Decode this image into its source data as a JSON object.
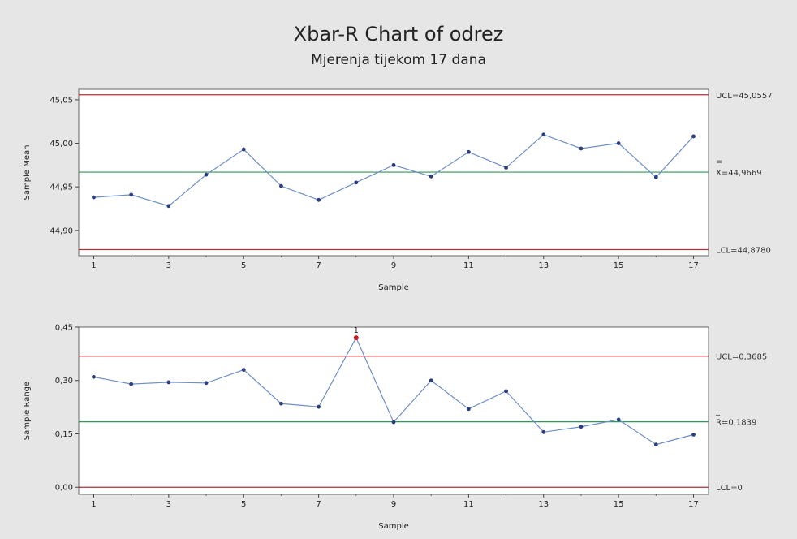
{
  "title": "Xbar-R Chart of odrez",
  "subtitle": "Mjerenja tijekom 17 dana",
  "colors": {
    "limit_line": "#b0303a",
    "center_line": "#2e9a5a",
    "series": "#6f8fc8",
    "point": "#2b3f80",
    "flag_point": "#c0202a",
    "plot_bg": "#ffffff",
    "figure_bg": "#e6e6e6"
  },
  "chart_data": [
    {
      "type": "line",
      "name": "xbar",
      "x": [
        1,
        2,
        3,
        4,
        5,
        6,
        7,
        8,
        9,
        10,
        11,
        12,
        13,
        14,
        15,
        16,
        17
      ],
      "values": [
        44.938,
        44.941,
        44.928,
        44.964,
        44.993,
        44.951,
        44.935,
        44.955,
        44.975,
        44.962,
        44.99,
        44.972,
        45.01,
        44.994,
        45.0,
        44.961,
        45.008
      ],
      "xlabel": "Sample",
      "ylabel": "Sample Mean",
      "ylim": [
        44.871,
        45.062
      ],
      "yticks": [
        44.9,
        44.95,
        45.0,
        45.05
      ],
      "ytick_labels": [
        "44,90",
        "44,95",
        "45,00",
        "45,05"
      ],
      "xticks": [
        1,
        3,
        5,
        7,
        9,
        11,
        13,
        15,
        17
      ],
      "xtick_labels": [
        "1",
        "3",
        "5",
        "7",
        "9",
        "11",
        "13",
        "15",
        "17"
      ],
      "limits": {
        "ucl": {
          "value": 45.0557,
          "label": "UCL=45,0557"
        },
        "center": {
          "value": 44.9669,
          "label": "X=44,9669",
          "overline": "="
        },
        "lcl": {
          "value": 44.878,
          "label": "LCL=44,8780"
        }
      },
      "flagged": []
    },
    {
      "type": "line",
      "name": "range",
      "x": [
        1,
        2,
        3,
        4,
        5,
        6,
        7,
        8,
        9,
        10,
        11,
        12,
        13,
        14,
        15,
        16,
        17
      ],
      "values": [
        0.31,
        0.29,
        0.295,
        0.293,
        0.33,
        0.235,
        0.226,
        0.42,
        0.183,
        0.3,
        0.22,
        0.27,
        0.155,
        0.17,
        0.19,
        0.12,
        0.148
      ],
      "xlabel": "Sample",
      "ylabel": "Sample Range",
      "ylim": [
        -0.02,
        0.45
      ],
      "yticks": [
        0.0,
        0.15,
        0.3,
        0.45
      ],
      "ytick_labels": [
        "0,00",
        "0,15",
        "0,30",
        "0,45"
      ],
      "xticks": [
        1,
        3,
        5,
        7,
        9,
        11,
        13,
        15,
        17
      ],
      "xtick_labels": [
        "1",
        "3",
        "5",
        "7",
        "9",
        "11",
        "13",
        "15",
        "17"
      ],
      "limits": {
        "ucl": {
          "value": 0.3685,
          "label": "UCL=0,3685"
        },
        "center": {
          "value": 0.1839,
          "label": "R=0,1839",
          "overline": "_"
        },
        "lcl": {
          "value": 0,
          "label": "LCL=0"
        }
      },
      "flagged": [
        {
          "index": 7,
          "label": "1"
        }
      ]
    }
  ]
}
